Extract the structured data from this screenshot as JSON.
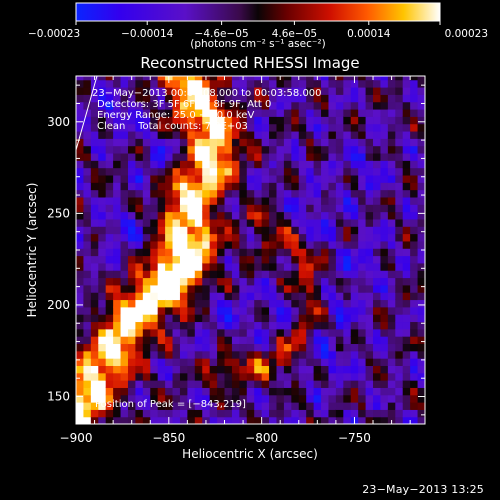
{
  "chart_data": {
    "type": "heatmap",
    "title": "Reconstructed RHESSI Image",
    "xlabel": "Heliocentric X (arcsec)",
    "ylabel": "Heliocentric Y (arcsec)",
    "xlim": [
      -900,
      -712
    ],
    "ylim": [
      135,
      325
    ],
    "x_ticks": [
      {
        "value": -900,
        "label": "−900"
      },
      {
        "value": -850,
        "label": "−850"
      },
      {
        "value": -800,
        "label": "−800"
      },
      {
        "value": -750,
        "label": "−750"
      }
    ],
    "y_ticks": [
      {
        "value": 150,
        "label": "150"
      },
      {
        "value": 200,
        "label": "200"
      },
      {
        "value": 250,
        "label": "250"
      },
      {
        "value": 300,
        "label": "300"
      }
    ],
    "colorbar": {
      "min": -0.00023,
      "max": 0.00023,
      "ticks": [
        {
          "value": -0.00023,
          "label": "−0.00023"
        },
        {
          "value": -0.00014,
          "label": "−0.00014"
        },
        {
          "value": -4.6e-05,
          "label": "−4.6e−05"
        },
        {
          "value": 4.6e-05,
          "label": "4.6e−05"
        },
        {
          "value": 0.00014,
          "label": "0.00014"
        },
        {
          "value": 0.00023,
          "label": "0.00023"
        }
      ],
      "unit_label": "(photons cm⁻² s⁻¹ asec⁻²)"
    },
    "annotations": [
      "23−May−2013 00:00:08.000 to 00:03:58.000",
      "Detectors: 3F 5F 6F 7F 8F 9F, Att 0",
      "Energy Range: 25.0 − 50.0 keV",
      "Clean    Total counts: 7.0E+03"
    ],
    "peak_label": "Position of Peak = [−843,219]",
    "peak_position": [
      -843,
      219
    ],
    "ridge": [
      [
        -840,
        325
      ],
      [
        -832,
        305
      ],
      [
        -825,
        290
      ],
      [
        -828,
        275
      ],
      [
        -838,
        262
      ],
      [
        -840,
        250
      ],
      [
        -838,
        238
      ],
      [
        -843,
        225
      ],
      [
        -850,
        212
      ],
      [
        -862,
        202
      ],
      [
        -872,
        190
      ],
      [
        -880,
        175
      ],
      [
        -890,
        160
      ],
      [
        -897,
        145
      ],
      [
        -900,
        138
      ]
    ],
    "ridge_secondary": [
      [
        -800,
        245
      ],
      [
        -790,
        235
      ],
      [
        -780,
        228
      ],
      [
        -773,
        210
      ],
      [
        -775,
        195
      ],
      [
        -782,
        180
      ],
      [
        -790,
        170
      ],
      [
        -805,
        165
      ],
      [
        -822,
        165
      ]
    ],
    "negative_centers": [
      [
        -758,
        200
      ],
      [
        -745,
        225
      ],
      [
        -765,
        170
      ],
      [
        -772,
        250
      ],
      [
        -880,
        305
      ],
      [
        -855,
        280
      ],
      [
        -875,
        240
      ],
      [
        -820,
        198
      ],
      [
        -745,
        275
      ],
      [
        -790,
        195
      ]
    ]
  },
  "footer": {
    "timestamp": "23−May−2013 13:25"
  }
}
